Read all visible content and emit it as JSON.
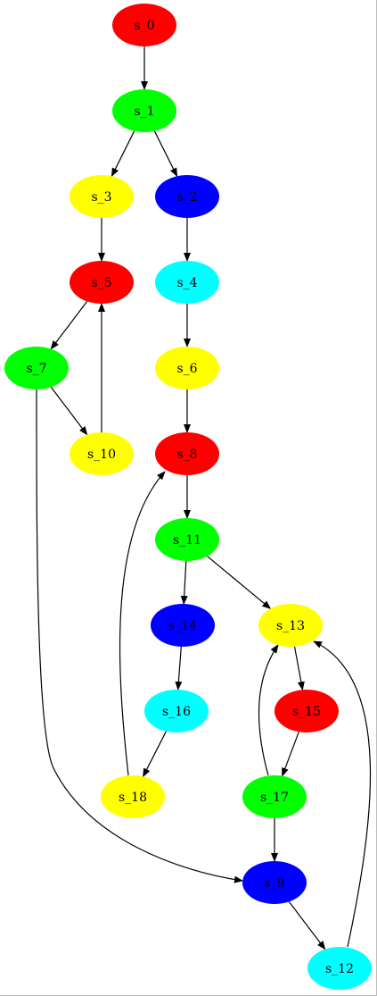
{
  "graph": {
    "nodes": [
      {
        "id": "s_0",
        "label": "s_0",
        "color": "#ff0000"
      },
      {
        "id": "s_1",
        "label": "s_1",
        "color": "#00ff00"
      },
      {
        "id": "s_3",
        "label": "s_3",
        "color": "#ffff00"
      },
      {
        "id": "s_2",
        "label": "s_2",
        "color": "#0000ff"
      },
      {
        "id": "s_5",
        "label": "s_5",
        "color": "#ff0000"
      },
      {
        "id": "s_4",
        "label": "s_4",
        "color": "#00ffff"
      },
      {
        "id": "s_7",
        "label": "s_7",
        "color": "#00ff00"
      },
      {
        "id": "s_6",
        "label": "s_6",
        "color": "#ffff00"
      },
      {
        "id": "s_10",
        "label": "s_10",
        "color": "#ffff00"
      },
      {
        "id": "s_8",
        "label": "s_8",
        "color": "#ff0000"
      },
      {
        "id": "s_11",
        "label": "s_11",
        "color": "#00ff00"
      },
      {
        "id": "s_14",
        "label": "s_14",
        "color": "#0000ff"
      },
      {
        "id": "s_13",
        "label": "s_13",
        "color": "#ffff00"
      },
      {
        "id": "s_16",
        "label": "s_16",
        "color": "#00ffff"
      },
      {
        "id": "s_15",
        "label": "s_15",
        "color": "#ff0000"
      },
      {
        "id": "s_18",
        "label": "s_18",
        "color": "#ffff00"
      },
      {
        "id": "s_17",
        "label": "s_17",
        "color": "#00ff00"
      },
      {
        "id": "s_9",
        "label": "s_9",
        "color": "#0000ff"
      },
      {
        "id": "s_12",
        "label": "s_12",
        "color": "#00ffff"
      }
    ],
    "edges": [
      {
        "from": "s_0",
        "to": "s_1"
      },
      {
        "from": "s_1",
        "to": "s_3"
      },
      {
        "from": "s_1",
        "to": "s_2"
      },
      {
        "from": "s_3",
        "to": "s_5"
      },
      {
        "from": "s_2",
        "to": "s_4"
      },
      {
        "from": "s_5",
        "to": "s_7"
      },
      {
        "from": "s_4",
        "to": "s_6"
      },
      {
        "from": "s_7",
        "to": "s_10"
      },
      {
        "from": "s_10",
        "to": "s_5"
      },
      {
        "from": "s_7",
        "to": "s_9"
      },
      {
        "from": "s_6",
        "to": "s_8"
      },
      {
        "from": "s_8",
        "to": "s_11"
      },
      {
        "from": "s_11",
        "to": "s_14"
      },
      {
        "from": "s_11",
        "to": "s_13"
      },
      {
        "from": "s_14",
        "to": "s_16"
      },
      {
        "from": "s_16",
        "to": "s_18"
      },
      {
        "from": "s_18",
        "to": "s_8"
      },
      {
        "from": "s_13",
        "to": "s_15"
      },
      {
        "from": "s_15",
        "to": "s_17"
      },
      {
        "from": "s_17",
        "to": "s_13"
      },
      {
        "from": "s_17",
        "to": "s_9"
      },
      {
        "from": "s_9",
        "to": "s_12"
      },
      {
        "from": "s_12",
        "to": "s_13"
      }
    ]
  }
}
